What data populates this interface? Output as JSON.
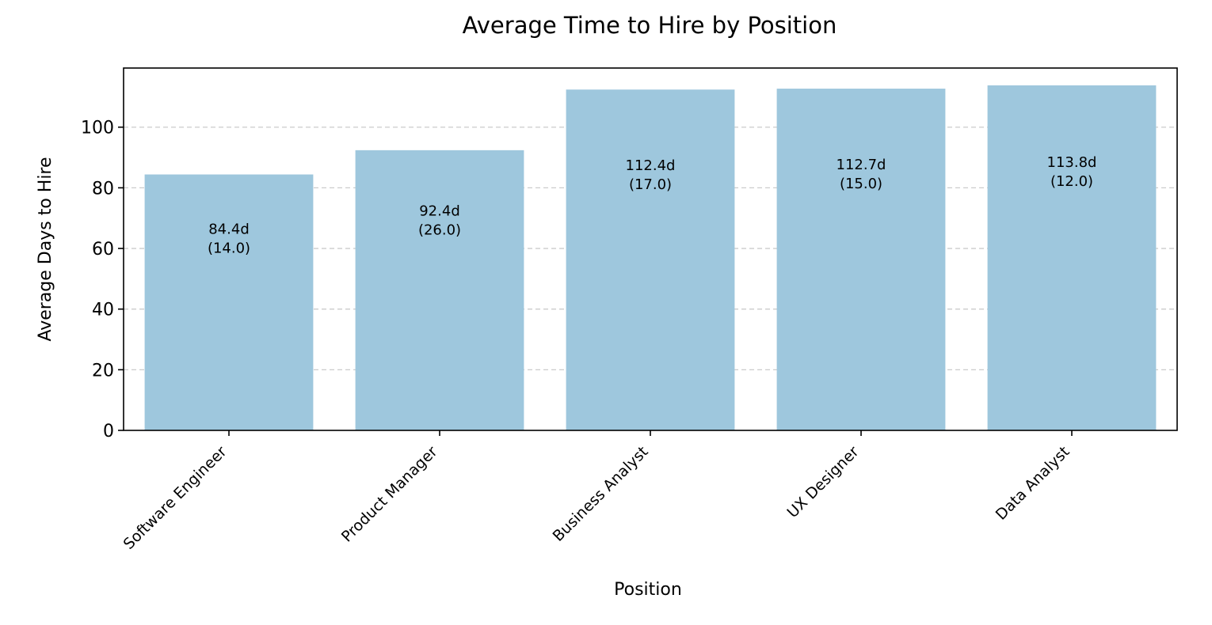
{
  "chart_data": {
    "type": "bar",
    "title": "Average Time to Hire by Position",
    "xlabel": "Position",
    "ylabel": "Average Days to Hire",
    "categories": [
      "Software Engineer",
      "Product Manager",
      "Business Analyst",
      "UX Designer",
      "Data Analyst"
    ],
    "values": [
      84.4,
      92.4,
      112.4,
      112.7,
      113.8
    ],
    "bar_labels": [
      [
        "84.4d",
        "(14.0)"
      ],
      [
        "92.4d",
        "(26.0)"
      ],
      [
        "112.4d",
        "(17.0)"
      ],
      [
        "112.7d",
        "(15.0)"
      ],
      [
        "113.8d",
        "(12.0)"
      ]
    ],
    "yticks": [
      0,
      20,
      40,
      60,
      80,
      100
    ],
    "ylim": [
      0,
      119.5
    ],
    "grid": "y-dashed",
    "legend": "none",
    "bar_color": "#9ec7dd"
  }
}
